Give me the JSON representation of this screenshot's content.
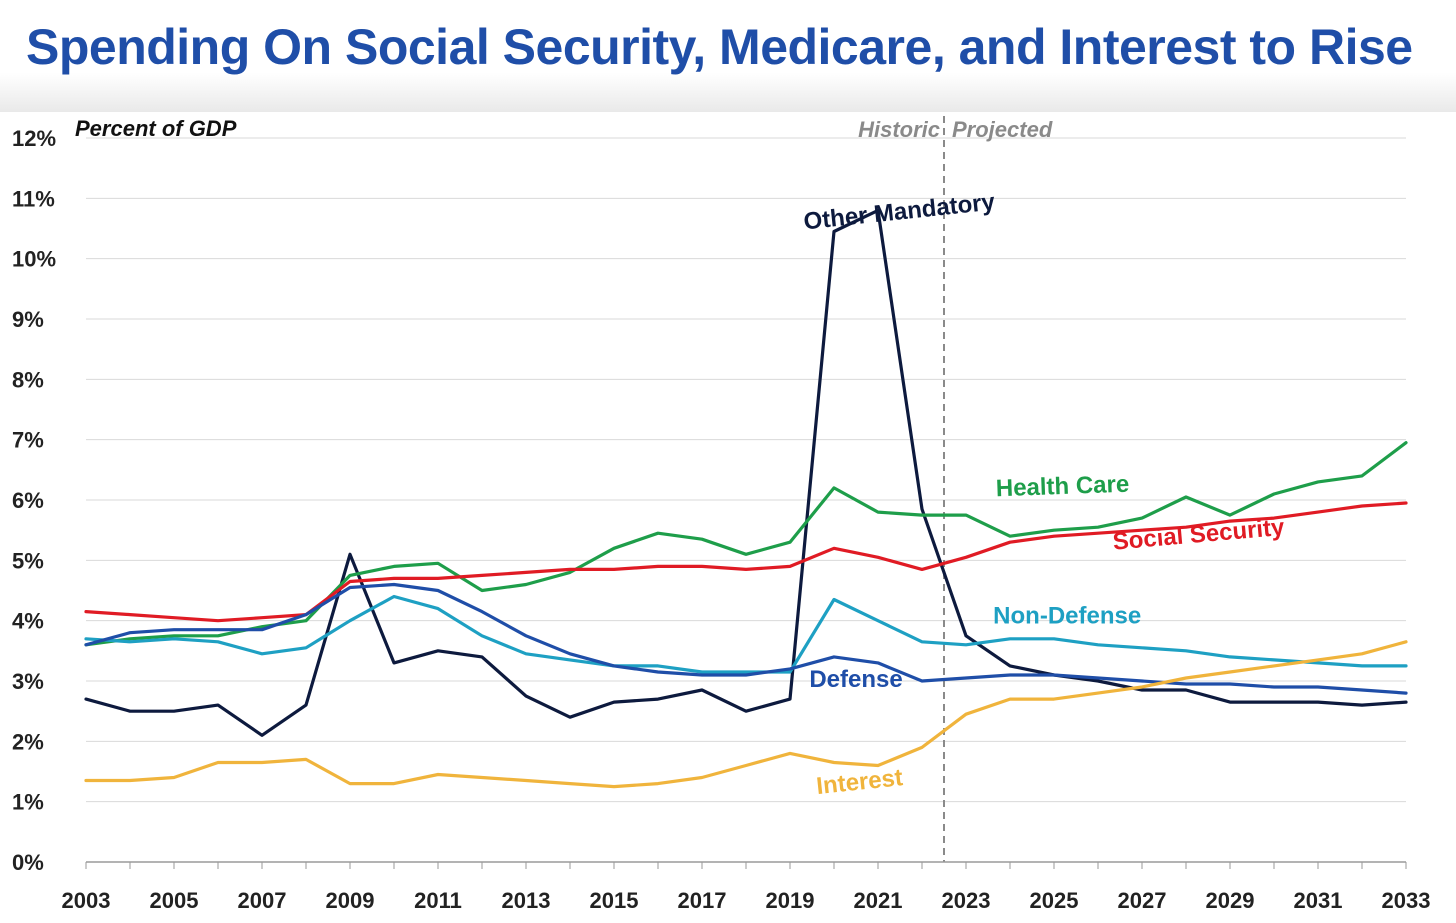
{
  "header": {
    "title": "Spending On Social Security, Medicare, and Interest to Rise"
  },
  "chart_data": {
    "type": "line",
    "title": "Spending On Social Security, Medicare, and Interest to Rise",
    "ylabel": "Percent of GDP",
    "xlabel": "",
    "ylim": [
      0,
      12
    ],
    "xlim": [
      2003,
      2033
    ],
    "grid": true,
    "y_ticks": [
      "0%",
      "1%",
      "2%",
      "3%",
      "4%",
      "5%",
      "6%",
      "7%",
      "8%",
      "9%",
      "10%",
      "11%",
      "12%"
    ],
    "x_ticks": [
      "2003",
      "2005",
      "2007",
      "2009",
      "2011",
      "2013",
      "2015",
      "2017",
      "2019",
      "2021",
      "2023",
      "2025",
      "2027",
      "2029",
      "2031",
      "2033"
    ],
    "period_split": 2022.5,
    "period_labels": {
      "left": "Historic",
      "right": "Projected"
    },
    "x": [
      2003,
      2004,
      2005,
      2006,
      2007,
      2008,
      2009,
      2010,
      2011,
      2012,
      2013,
      2014,
      2015,
      2016,
      2017,
      2018,
      2019,
      2020,
      2021,
      2022,
      2023,
      2024,
      2025,
      2026,
      2027,
      2028,
      2029,
      2030,
      2031,
      2032,
      2033
    ],
    "series": [
      {
        "name": "Other Mandatory",
        "color": "#0d1a3e",
        "label_pos": [
          2021.5,
          10.65
        ],
        "label_rotate": -6,
        "values": [
          2.7,
          2.5,
          2.5,
          2.6,
          2.1,
          2.6,
          5.1,
          3.3,
          3.5,
          3.4,
          2.75,
          2.4,
          2.65,
          2.7,
          2.85,
          2.5,
          2.7,
          10.45,
          10.8,
          5.85,
          3.75,
          3.25,
          3.1,
          3.0,
          2.85,
          2.85,
          2.65,
          2.65,
          2.65,
          2.6,
          2.65
        ]
      },
      {
        "name": "Health Care",
        "color": "#1e9e4a",
        "label_pos": [
          2025.2,
          6.1
        ],
        "label_rotate": -2,
        "values": [
          3.6,
          3.7,
          3.75,
          3.75,
          3.9,
          4.0,
          4.75,
          4.9,
          4.95,
          4.5,
          4.6,
          4.8,
          5.2,
          5.45,
          5.35,
          5.1,
          5.3,
          6.2,
          5.8,
          5.75,
          5.75,
          5.4,
          5.5,
          5.55,
          5.7,
          6.05,
          5.75,
          6.1,
          6.3,
          6.4,
          6.95
        ]
      },
      {
        "name": "Social Security",
        "color": "#e01b24",
        "label_pos": [
          2028.3,
          5.3
        ],
        "label_rotate": -5,
        "values": [
          4.15,
          4.1,
          4.05,
          4.0,
          4.05,
          4.1,
          4.65,
          4.7,
          4.7,
          4.75,
          4.8,
          4.85,
          4.85,
          4.9,
          4.9,
          4.85,
          4.9,
          5.2,
          5.05,
          4.85,
          5.05,
          5.3,
          5.4,
          5.45,
          5.5,
          5.55,
          5.65,
          5.7,
          5.8,
          5.9,
          5.95
        ]
      },
      {
        "name": "Non-Defense",
        "color": "#1ea0c3",
        "label_pos": [
          2025.3,
          3.95
        ],
        "label_rotate": 0,
        "values": [
          3.7,
          3.65,
          3.7,
          3.65,
          3.45,
          3.55,
          4.0,
          4.4,
          4.2,
          3.75,
          3.45,
          3.35,
          3.25,
          3.25,
          3.15,
          3.15,
          3.15,
          4.35,
          4.0,
          3.65,
          3.6,
          3.7,
          3.7,
          3.6,
          3.55,
          3.5,
          3.4,
          3.35,
          3.3,
          3.25,
          3.25
        ]
      },
      {
        "name": "Defense",
        "color": "#1f4ea8",
        "label_pos": [
          2020.5,
          2.9
        ],
        "label_rotate": 0,
        "values": [
          3.6,
          3.8,
          3.85,
          3.85,
          3.85,
          4.1,
          4.55,
          4.6,
          4.5,
          4.15,
          3.75,
          3.45,
          3.25,
          3.15,
          3.1,
          3.1,
          3.2,
          3.4,
          3.3,
          3.0,
          3.05,
          3.1,
          3.1,
          3.05,
          3.0,
          2.95,
          2.95,
          2.9,
          2.9,
          2.85,
          2.8
        ]
      },
      {
        "name": "Interest",
        "color": "#f0b43c",
        "label_pos": [
          2020.6,
          1.2
        ],
        "label_rotate": -6,
        "values": [
          1.35,
          1.35,
          1.4,
          1.65,
          1.65,
          1.7,
          1.3,
          1.3,
          1.45,
          1.4,
          1.35,
          1.3,
          1.25,
          1.3,
          1.4,
          1.6,
          1.8,
          1.65,
          1.6,
          1.9,
          2.45,
          2.7,
          2.7,
          2.8,
          2.9,
          3.05,
          3.15,
          3.25,
          3.35,
          3.45,
          3.65
        ]
      }
    ]
  }
}
